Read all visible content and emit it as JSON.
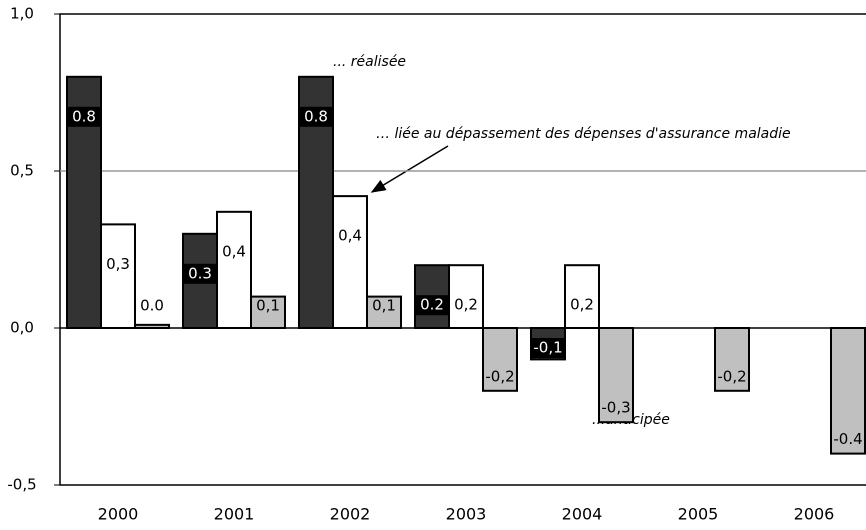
{
  "chart_data": {
    "type": "bar",
    "categories": [
      "2000",
      "2001",
      "2002",
      "2003",
      "2004",
      "2005",
      "2006"
    ],
    "series": [
      {
        "name": "... réalisée",
        "color": "#333333",
        "values": [
          0.8,
          0.3,
          0.8,
          0.2,
          -0.1,
          null,
          null
        ],
        "value_labels": [
          "0.8",
          "0.3",
          "0.8",
          "0.2",
          "-0,1",
          null,
          null
        ]
      },
      {
        "name": "… liée au dépassement des dépenses d'assurance maladie",
        "color": "#ffffff",
        "values": [
          0.33,
          0.37,
          0.42,
          0.2,
          0.2,
          null,
          null
        ],
        "value_labels": [
          "0,3",
          "0,4",
          "0,4",
          "0,2",
          "0,2",
          null,
          null
        ]
      },
      {
        "name": "...anticipée",
        "color": "#c0c0c0",
        "values": [
          0.01,
          0.1,
          0.1,
          -0.2,
          -0.3,
          -0.2,
          -0.4
        ],
        "value_labels": [
          "0.0",
          "0,1",
          "0,1",
          "-0,2",
          "-0,3",
          "-0,2",
          "-0.4"
        ]
      }
    ],
    "ylim": [
      -0.5,
      1.0
    ],
    "yticks": [
      {
        "value": -0.5,
        "label": "-0,5"
      },
      {
        "value": 0,
        "label": "0,0"
      },
      {
        "value": 0.5,
        "label": "0,5"
      },
      {
        "value": 1.0,
        "label": "1,0"
      }
    ],
    "grid": true
  }
}
